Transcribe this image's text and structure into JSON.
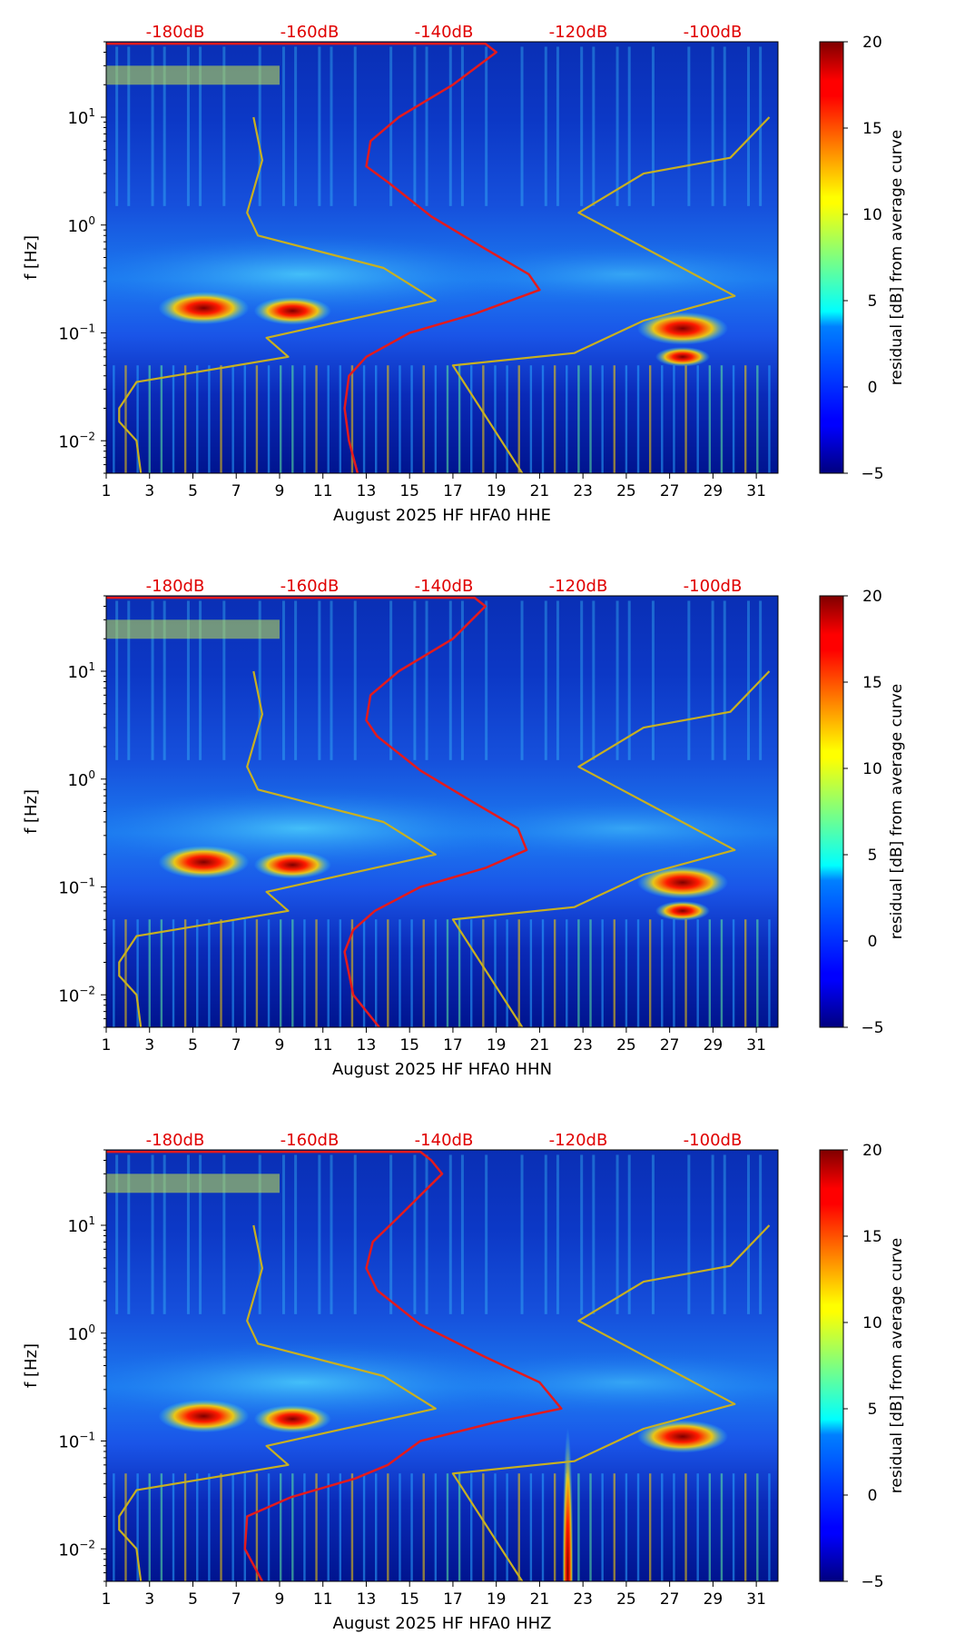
{
  "chart_data": [
    {
      "type": "heatmap",
      "title": "",
      "xlabel": "August 2025 HF HFA0  HHE",
      "ylabel": "f [Hz]",
      "x_ticks": [
        "1",
        "3",
        "5",
        "7",
        "9",
        "11",
        "13",
        "15",
        "17",
        "19",
        "21",
        "23",
        "25",
        "27",
        "29",
        "31"
      ],
      "x_range": [
        1,
        32
      ],
      "y_ticks": [
        {
          "label": "10",
          "exp": "−2",
          "value": 0.01
        },
        {
          "label": "10",
          "exp": "−1",
          "value": 0.1
        },
        {
          "label": "10",
          "exp": "0",
          "value": 1
        },
        {
          "label": "10",
          "exp": "1",
          "value": 10
        }
      ],
      "y_range": [
        0.005,
        50
      ],
      "y_scale": "log",
      "top_axis_labels": [
        "-180dB",
        "-160dB",
        "-140dB",
        "-120dB",
        "-100dB"
      ],
      "colorbar": {
        "label": "residual [dB] from average curve",
        "ticks": [
          "20",
          "15",
          "10",
          "5",
          "0",
          "−5"
        ],
        "range": [
          -5,
          20
        ]
      },
      "series": [
        {
          "name": "average PSD curve",
          "color": "#e41a1c",
          "points": [
            [
              12.6,
              0.005
            ],
            [
              12.2,
              0.01
            ],
            [
              12.0,
              0.02
            ],
            [
              12.2,
              0.04
            ],
            [
              13.0,
              0.06
            ],
            [
              15.0,
              0.1
            ],
            [
              18.0,
              0.15
            ],
            [
              21.0,
              0.25
            ],
            [
              20.5,
              0.35
            ],
            [
              18.5,
              0.6
            ],
            [
              16.0,
              1.2
            ],
            [
              14.0,
              2.5
            ],
            [
              13.0,
              3.5
            ],
            [
              13.2,
              6
            ],
            [
              14.5,
              10
            ],
            [
              17.0,
              20
            ],
            [
              19.0,
              40
            ],
            [
              18.5,
              48
            ],
            [
              1.0,
              48
            ]
          ]
        },
        {
          "name": "low noise model",
          "color": "#c8b020",
          "points": [
            [
              2.6,
              0.005
            ],
            [
              2.4,
              0.01
            ],
            [
              1.6,
              0.015
            ],
            [
              1.6,
              0.02
            ],
            [
              2.4,
              0.035
            ],
            [
              9.4,
              0.06
            ],
            [
              8.4,
              0.09
            ],
            [
              16.2,
              0.2
            ],
            [
              13.8,
              0.4
            ],
            [
              8.0,
              0.8
            ],
            [
              7.5,
              1.3
            ],
            [
              8.2,
              4
            ],
            [
              7.8,
              10
            ]
          ]
        },
        {
          "name": "high noise model",
          "color": "#c8b020",
          "points": [
            [
              20.2,
              0.005
            ],
            [
              17.0,
              0.05
            ],
            [
              22.6,
              0.065
            ],
            [
              25.8,
              0.13
            ],
            [
              30.0,
              0.22
            ],
            [
              22.8,
              1.3
            ],
            [
              25.8,
              3
            ],
            [
              29.8,
              4.2
            ],
            [
              31.6,
              10
            ]
          ]
        }
      ],
      "hotspots": [
        {
          "day": 5.5,
          "freq": 0.17,
          "strength": 1.0
        },
        {
          "day": 9.6,
          "freq": 0.16,
          "strength": 0.85
        },
        {
          "day": 27.6,
          "freq": 0.11,
          "strength": 1.0
        },
        {
          "day": 27.6,
          "freq": 0.06,
          "strength": 0.6
        }
      ]
    },
    {
      "type": "heatmap",
      "title": "",
      "xlabel": "August 2025 HF HFA0  HHN",
      "ylabel": "f [Hz]",
      "x_ticks": [
        "1",
        "3",
        "5",
        "7",
        "9",
        "11",
        "13",
        "15",
        "17",
        "19",
        "21",
        "23",
        "25",
        "27",
        "29",
        "31"
      ],
      "x_range": [
        1,
        32
      ],
      "y_ticks": [
        {
          "label": "10",
          "exp": "−2",
          "value": 0.01
        },
        {
          "label": "10",
          "exp": "−1",
          "value": 0.1
        },
        {
          "label": "10",
          "exp": "0",
          "value": 1
        },
        {
          "label": "10",
          "exp": "1",
          "value": 10
        }
      ],
      "y_range": [
        0.005,
        50
      ],
      "y_scale": "log",
      "top_axis_labels": [
        "-180dB",
        "-160dB",
        "-140dB",
        "-120dB",
        "-100dB"
      ],
      "colorbar": {
        "label": "residual [dB] from average curve",
        "ticks": [
          "20",
          "15",
          "10",
          "5",
          "0",
          "−5"
        ],
        "range": [
          -5,
          20
        ]
      },
      "series": [
        {
          "name": "average PSD curve",
          "color": "#e41a1c",
          "points": [
            [
              13.6,
              0.005
            ],
            [
              12.4,
              0.01
            ],
            [
              12.0,
              0.025
            ],
            [
              12.4,
              0.04
            ],
            [
              13.4,
              0.06
            ],
            [
              15.5,
              0.1
            ],
            [
              18.5,
              0.15
            ],
            [
              20.4,
              0.22
            ],
            [
              20.0,
              0.35
            ],
            [
              18.0,
              0.6
            ],
            [
              15.5,
              1.2
            ],
            [
              13.5,
              2.5
            ],
            [
              13.0,
              3.5
            ],
            [
              13.2,
              6
            ],
            [
              14.5,
              10
            ],
            [
              17.0,
              20
            ],
            [
              18.5,
              40
            ],
            [
              18.0,
              48
            ],
            [
              1.0,
              48
            ]
          ]
        },
        {
          "name": "low noise model",
          "color": "#c8b020",
          "points": [
            [
              2.6,
              0.005
            ],
            [
              2.4,
              0.01
            ],
            [
              1.6,
              0.015
            ],
            [
              1.6,
              0.02
            ],
            [
              2.4,
              0.035
            ],
            [
              9.4,
              0.06
            ],
            [
              8.4,
              0.09
            ],
            [
              16.2,
              0.2
            ],
            [
              13.8,
              0.4
            ],
            [
              8.0,
              0.8
            ],
            [
              7.5,
              1.3
            ],
            [
              8.2,
              4
            ],
            [
              7.8,
              10
            ]
          ]
        },
        {
          "name": "high noise model",
          "color": "#c8b020",
          "points": [
            [
              20.2,
              0.005
            ],
            [
              17.0,
              0.05
            ],
            [
              22.6,
              0.065
            ],
            [
              25.8,
              0.13
            ],
            [
              30.0,
              0.22
            ],
            [
              22.8,
              1.3
            ],
            [
              25.8,
              3
            ],
            [
              29.8,
              4.2
            ],
            [
              31.6,
              10
            ]
          ]
        }
      ],
      "hotspots": [
        {
          "day": 5.5,
          "freq": 0.17,
          "strength": 1.0
        },
        {
          "day": 9.6,
          "freq": 0.16,
          "strength": 0.85
        },
        {
          "day": 27.6,
          "freq": 0.11,
          "strength": 1.0
        },
        {
          "day": 27.6,
          "freq": 0.06,
          "strength": 0.6
        }
      ]
    },
    {
      "type": "heatmap",
      "title": "",
      "xlabel": "August 2025 HF HFA0  HHZ",
      "ylabel": "f [Hz]",
      "x_ticks": [
        "1",
        "3",
        "5",
        "7",
        "9",
        "11",
        "13",
        "15",
        "17",
        "19",
        "21",
        "23",
        "25",
        "27",
        "29",
        "31"
      ],
      "x_range": [
        1,
        32
      ],
      "y_ticks": [
        {
          "label": "10",
          "exp": "−2",
          "value": 0.01
        },
        {
          "label": "10",
          "exp": "−1",
          "value": 0.1
        },
        {
          "label": "10",
          "exp": "0",
          "value": 1
        },
        {
          "label": "10",
          "exp": "1",
          "value": 10
        }
      ],
      "y_range": [
        0.005,
        50
      ],
      "y_scale": "log",
      "top_axis_labels": [
        "-180dB",
        "-160dB",
        "-140dB",
        "-120dB",
        "-100dB"
      ],
      "colorbar": {
        "label": "residual [dB] from average curve",
        "ticks": [
          "20",
          "15",
          "10",
          "5",
          "0",
          "−5"
        ],
        "range": [
          -5,
          20
        ]
      },
      "series": [
        {
          "name": "average PSD curve",
          "color": "#e41a1c",
          "points": [
            [
              8.2,
              0.005
            ],
            [
              7.4,
              0.01
            ],
            [
              7.5,
              0.02
            ],
            [
              9.5,
              0.03
            ],
            [
              12.5,
              0.045
            ],
            [
              14.0,
              0.06
            ],
            [
              15.5,
              0.1
            ],
            [
              19.0,
              0.15
            ],
            [
              22.0,
              0.2
            ],
            [
              21.0,
              0.35
            ],
            [
              18.5,
              0.6
            ],
            [
              15.5,
              1.2
            ],
            [
              13.5,
              2.5
            ],
            [
              13.0,
              4
            ],
            [
              13.3,
              7
            ],
            [
              14.5,
              12
            ],
            [
              16.5,
              30
            ],
            [
              16.0,
              40
            ],
            [
              15.5,
              48
            ],
            [
              1.0,
              48
            ]
          ]
        },
        {
          "name": "low noise model",
          "color": "#c8b020",
          "points": [
            [
              2.6,
              0.005
            ],
            [
              2.4,
              0.01
            ],
            [
              1.6,
              0.015
            ],
            [
              1.6,
              0.02
            ],
            [
              2.4,
              0.035
            ],
            [
              9.4,
              0.06
            ],
            [
              8.4,
              0.09
            ],
            [
              16.2,
              0.2
            ],
            [
              13.8,
              0.4
            ],
            [
              8.0,
              0.8
            ],
            [
              7.5,
              1.3
            ],
            [
              8.2,
              4
            ],
            [
              7.8,
              10
            ]
          ]
        },
        {
          "name": "high noise model",
          "color": "#c8b020",
          "points": [
            [
              20.2,
              0.005
            ],
            [
              17.0,
              0.05
            ],
            [
              22.6,
              0.065
            ],
            [
              25.8,
              0.13
            ],
            [
              30.0,
              0.22
            ],
            [
              22.8,
              1.3
            ],
            [
              25.8,
              3
            ],
            [
              29.8,
              4.2
            ],
            [
              31.6,
              10
            ]
          ]
        }
      ],
      "hotspots": [
        {
          "day": 5.5,
          "freq": 0.17,
          "strength": 1.0
        },
        {
          "day": 9.6,
          "freq": 0.16,
          "strength": 0.85
        },
        {
          "day": 27.6,
          "freq": 0.11,
          "strength": 1.0
        },
        {
          "day": 22.3,
          "freq": 0.006,
          "strength": 0.9
        }
      ]
    }
  ]
}
